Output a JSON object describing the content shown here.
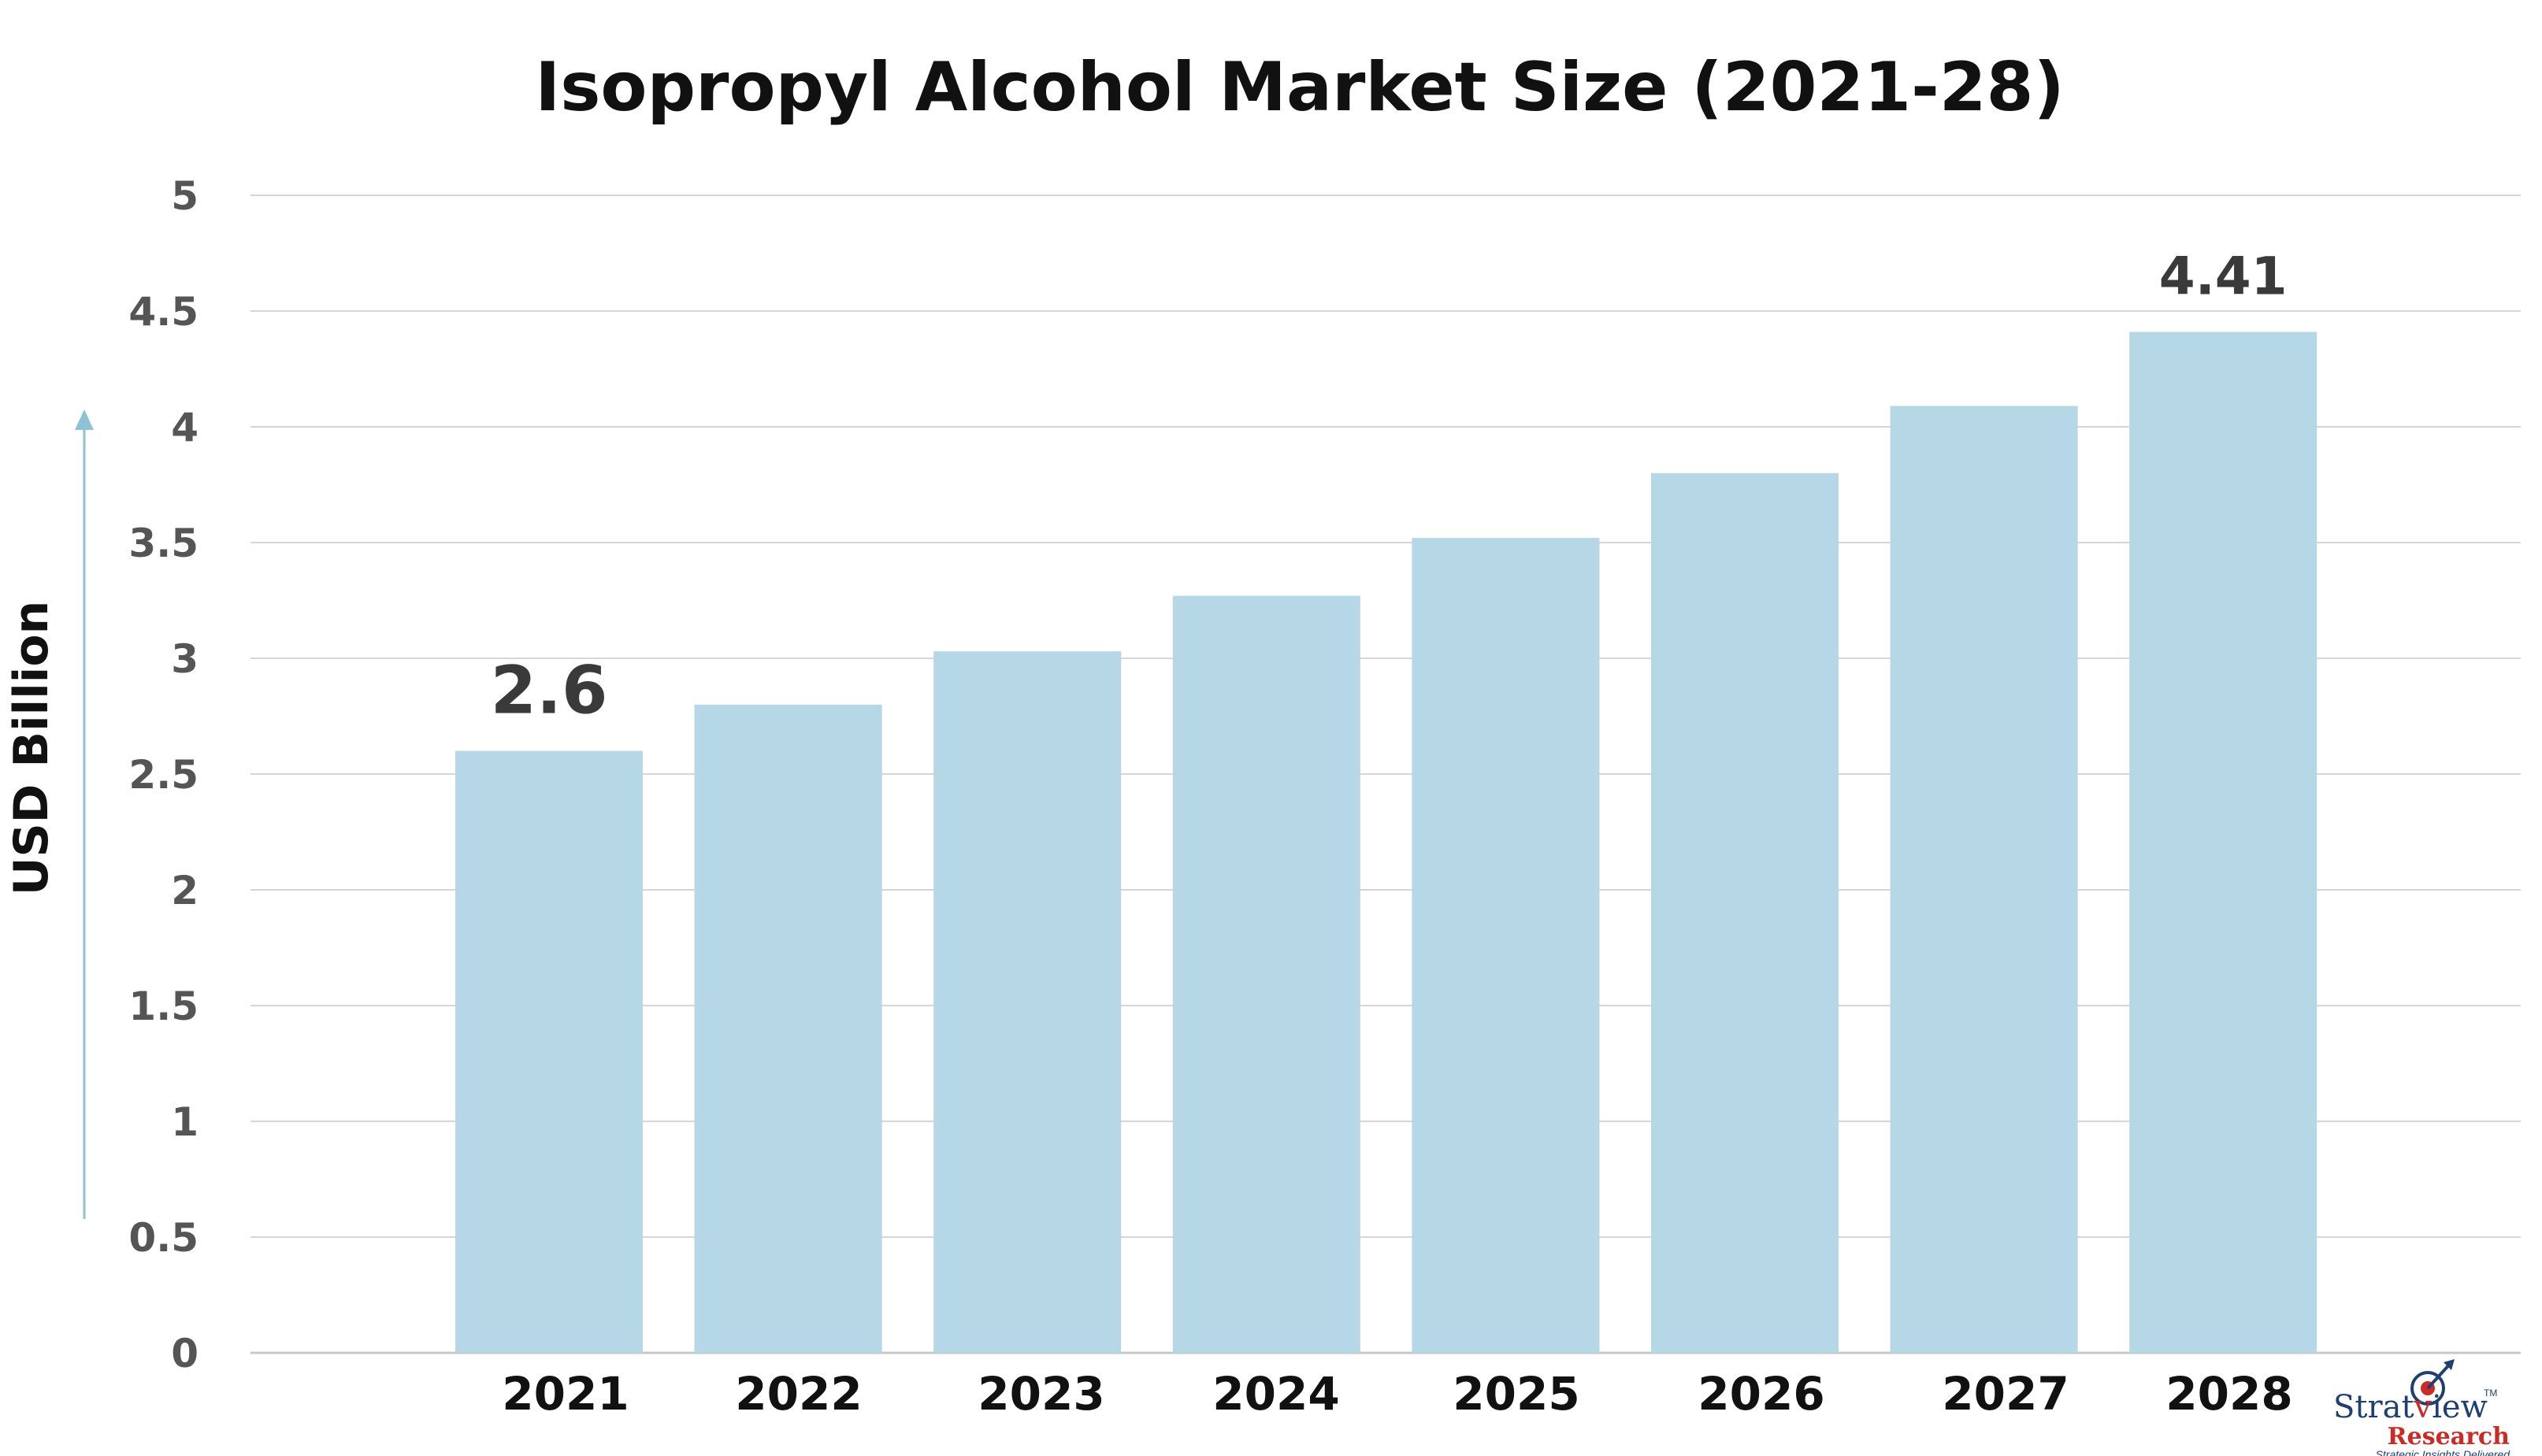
{
  "chart_data": {
    "type": "bar",
    "title": "Isopropyl Alcohol Market Size (2021-28)",
    "xlabel": "",
    "ylabel": "USD Billion",
    "categories": [
      "2021",
      "2022",
      "2023",
      "2024",
      "2025",
      "2026",
      "2027",
      "2028"
    ],
    "values": [
      2.6,
      2.8,
      3.03,
      3.27,
      3.52,
      3.8,
      4.09,
      4.41
    ],
    "data_labels": [
      {
        "category_index": 0,
        "text": "2.6"
      },
      {
        "category_index": 7,
        "text": "4.41"
      }
    ],
    "ylim": [
      0,
      5
    ],
    "yticks": [
      0,
      0.5,
      1,
      1.5,
      2,
      2.5,
      3,
      3.5,
      4,
      4.5,
      5
    ],
    "ytick_labels": [
      "0",
      "0.5",
      "1",
      "1.5",
      "2",
      "2.5",
      "3",
      "3.5",
      "4",
      "4.5",
      "5"
    ],
    "grid": true,
    "legend": "none",
    "colors": {
      "bar": "#b5d7e6",
      "grid": "#d6d6d6",
      "arrow": "#8ec3d6"
    }
  },
  "logo": {
    "name_part1": "Strat",
    "name_part2": "iew",
    "trademark": "TM",
    "line2": "Research",
    "tagline": "Strategic Insights Delivered"
  }
}
